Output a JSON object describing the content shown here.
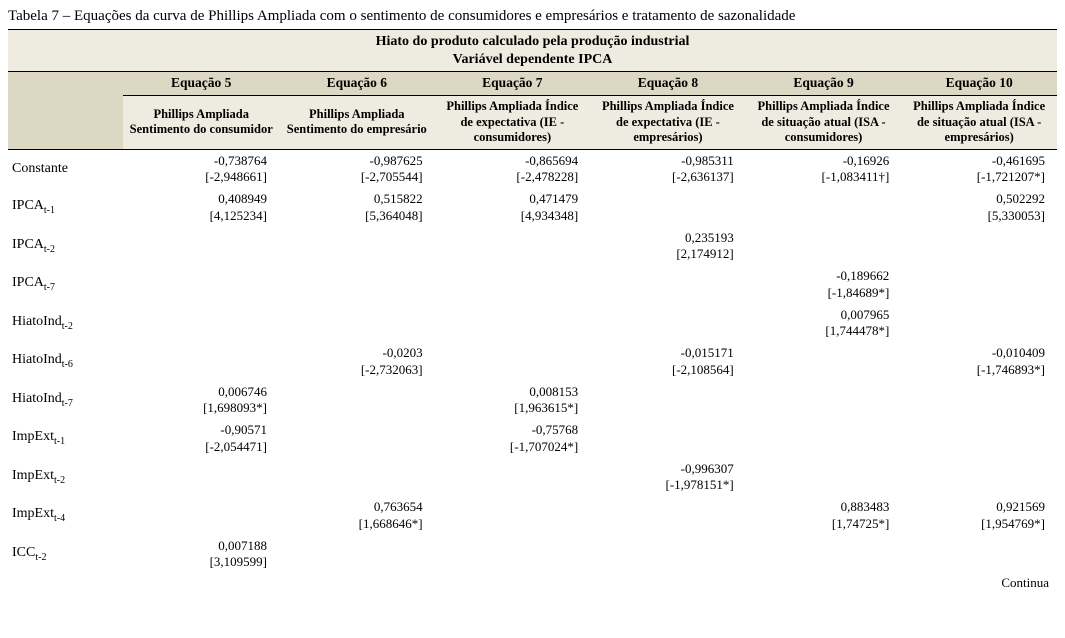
{
  "caption": "Tabela 7 – Equações da curva de Phillips Ampliada com o sentimento de consumidores e empresários e tratamento de sazonalidade",
  "header": {
    "top_line1": "Hiato do produto calculado pela produção industrial",
    "top_line2": "Variável dependente IPCA",
    "eqs": [
      "Equação 5",
      "Equação 6",
      "Equação 7",
      "Equação 8",
      "Equação 9",
      "Equação 10"
    ],
    "subs": [
      "Phillips Ampliada Sentimento do consumidor",
      "Phillips Ampliada Sentimento do empresário",
      "Phillips Ampliada Índice de expectativa (IE - consumidores)",
      "Phillips Ampliada Índice de expectativa (IE - empresários)",
      "Phillips Ampliada Índice de situação atual (ISA - consumidores)",
      "Phillips Ampliada Índice de situação atual (ISA - empresários)"
    ]
  },
  "rows": [
    {
      "label_main": "Constante",
      "label_sub": "",
      "cells": [
        {
          "v": "-0,738764",
          "t": "[-2,948661]"
        },
        {
          "v": "-0,987625",
          "t": "[-2,705544]"
        },
        {
          "v": "-0,865694",
          "t": "[-2,478228]"
        },
        {
          "v": "-0,985311",
          "t": "[-2,636137]"
        },
        {
          "v": "-0,16926",
          "t": "[-1,083411†]"
        },
        {
          "v": "-0,461695",
          "t": "[-1,721207*]"
        }
      ]
    },
    {
      "label_main": "IPCA",
      "label_sub": "t-1",
      "cells": [
        {
          "v": "0,408949",
          "t": "[4,125234]"
        },
        {
          "v": "0,515822",
          "t": "[5,364048]"
        },
        {
          "v": "0,471479",
          "t": "[4,934348]"
        },
        {
          "v": "",
          "t": ""
        },
        {
          "v": "",
          "t": ""
        },
        {
          "v": "0,502292",
          "t": "[5,330053]"
        }
      ]
    },
    {
      "label_main": "IPCA",
      "label_sub": "t-2",
      "cells": [
        {
          "v": "",
          "t": ""
        },
        {
          "v": "",
          "t": ""
        },
        {
          "v": "",
          "t": ""
        },
        {
          "v": "0,235193",
          "t": "[2,174912]"
        },
        {
          "v": "",
          "t": ""
        },
        {
          "v": "",
          "t": ""
        }
      ]
    },
    {
      "label_main": "IPCA",
      "label_sub": "t-7",
      "cells": [
        {
          "v": "",
          "t": ""
        },
        {
          "v": "",
          "t": ""
        },
        {
          "v": "",
          "t": ""
        },
        {
          "v": "",
          "t": ""
        },
        {
          "v": "-0,189662",
          "t": "[-1,84689*]"
        },
        {
          "v": "",
          "t": ""
        }
      ]
    },
    {
      "label_main": "HiatoInd",
      "label_sub": "t-2",
      "cells": [
        {
          "v": "",
          "t": ""
        },
        {
          "v": "",
          "t": ""
        },
        {
          "v": "",
          "t": ""
        },
        {
          "v": "",
          "t": ""
        },
        {
          "v": "0,007965",
          "t": "[1,744478*]"
        },
        {
          "v": "",
          "t": ""
        }
      ]
    },
    {
      "label_main": "HiatoInd",
      "label_sub": "t-6",
      "cells": [
        {
          "v": "",
          "t": ""
        },
        {
          "v": "-0,0203",
          "t": "[-2,732063]"
        },
        {
          "v": "",
          "t": ""
        },
        {
          "v": "-0,015171",
          "t": "[-2,108564]"
        },
        {
          "v": "",
          "t": ""
        },
        {
          "v": "-0,010409",
          "t": "[-1,746893*]"
        }
      ]
    },
    {
      "label_main": "HiatoInd",
      "label_sub": "t-7",
      "cells": [
        {
          "v": "0,006746",
          "t": "[1,698093*]"
        },
        {
          "v": "",
          "t": ""
        },
        {
          "v": "0,008153",
          "t": "[1,963615*]"
        },
        {
          "v": "",
          "t": ""
        },
        {
          "v": "",
          "t": ""
        },
        {
          "v": "",
          "t": ""
        }
      ]
    },
    {
      "label_main": "ImpExt",
      "label_sub": "t-1",
      "cells": [
        {
          "v": "-0,90571",
          "t": "[-2,054471]"
        },
        {
          "v": "",
          "t": ""
        },
        {
          "v": "-0,75768",
          "t": "[-1,707024*]"
        },
        {
          "v": "",
          "t": ""
        },
        {
          "v": "",
          "t": ""
        },
        {
          "v": "",
          "t": ""
        }
      ]
    },
    {
      "label_main": "ImpExt",
      "label_sub": "t-2",
      "cells": [
        {
          "v": "",
          "t": ""
        },
        {
          "v": "",
          "t": ""
        },
        {
          "v": "",
          "t": ""
        },
        {
          "v": "-0,996307",
          "t": "[-1,978151*]"
        },
        {
          "v": "",
          "t": ""
        },
        {
          "v": "",
          "t": ""
        }
      ]
    },
    {
      "label_main": "ImpExt",
      "label_sub": "t-4",
      "cells": [
        {
          "v": "",
          "t": ""
        },
        {
          "v": "0,763654",
          "t": "[1,668646*]"
        },
        {
          "v": "",
          "t": ""
        },
        {
          "v": "",
          "t": ""
        },
        {
          "v": "0,883483",
          "t": "[1,74725*]"
        },
        {
          "v": "0,921569",
          "t": "[1,954769*]"
        }
      ]
    },
    {
      "label_main": "ICC",
      "label_sub": "t-2",
      "cells": [
        {
          "v": "0,007188",
          "t": "[3,109599]"
        },
        {
          "v": "",
          "t": ""
        },
        {
          "v": "",
          "t": ""
        },
        {
          "v": "",
          "t": ""
        },
        {
          "v": "",
          "t": ""
        },
        {
          "v": "",
          "t": ""
        }
      ]
    }
  ],
  "continua": "Continua"
}
